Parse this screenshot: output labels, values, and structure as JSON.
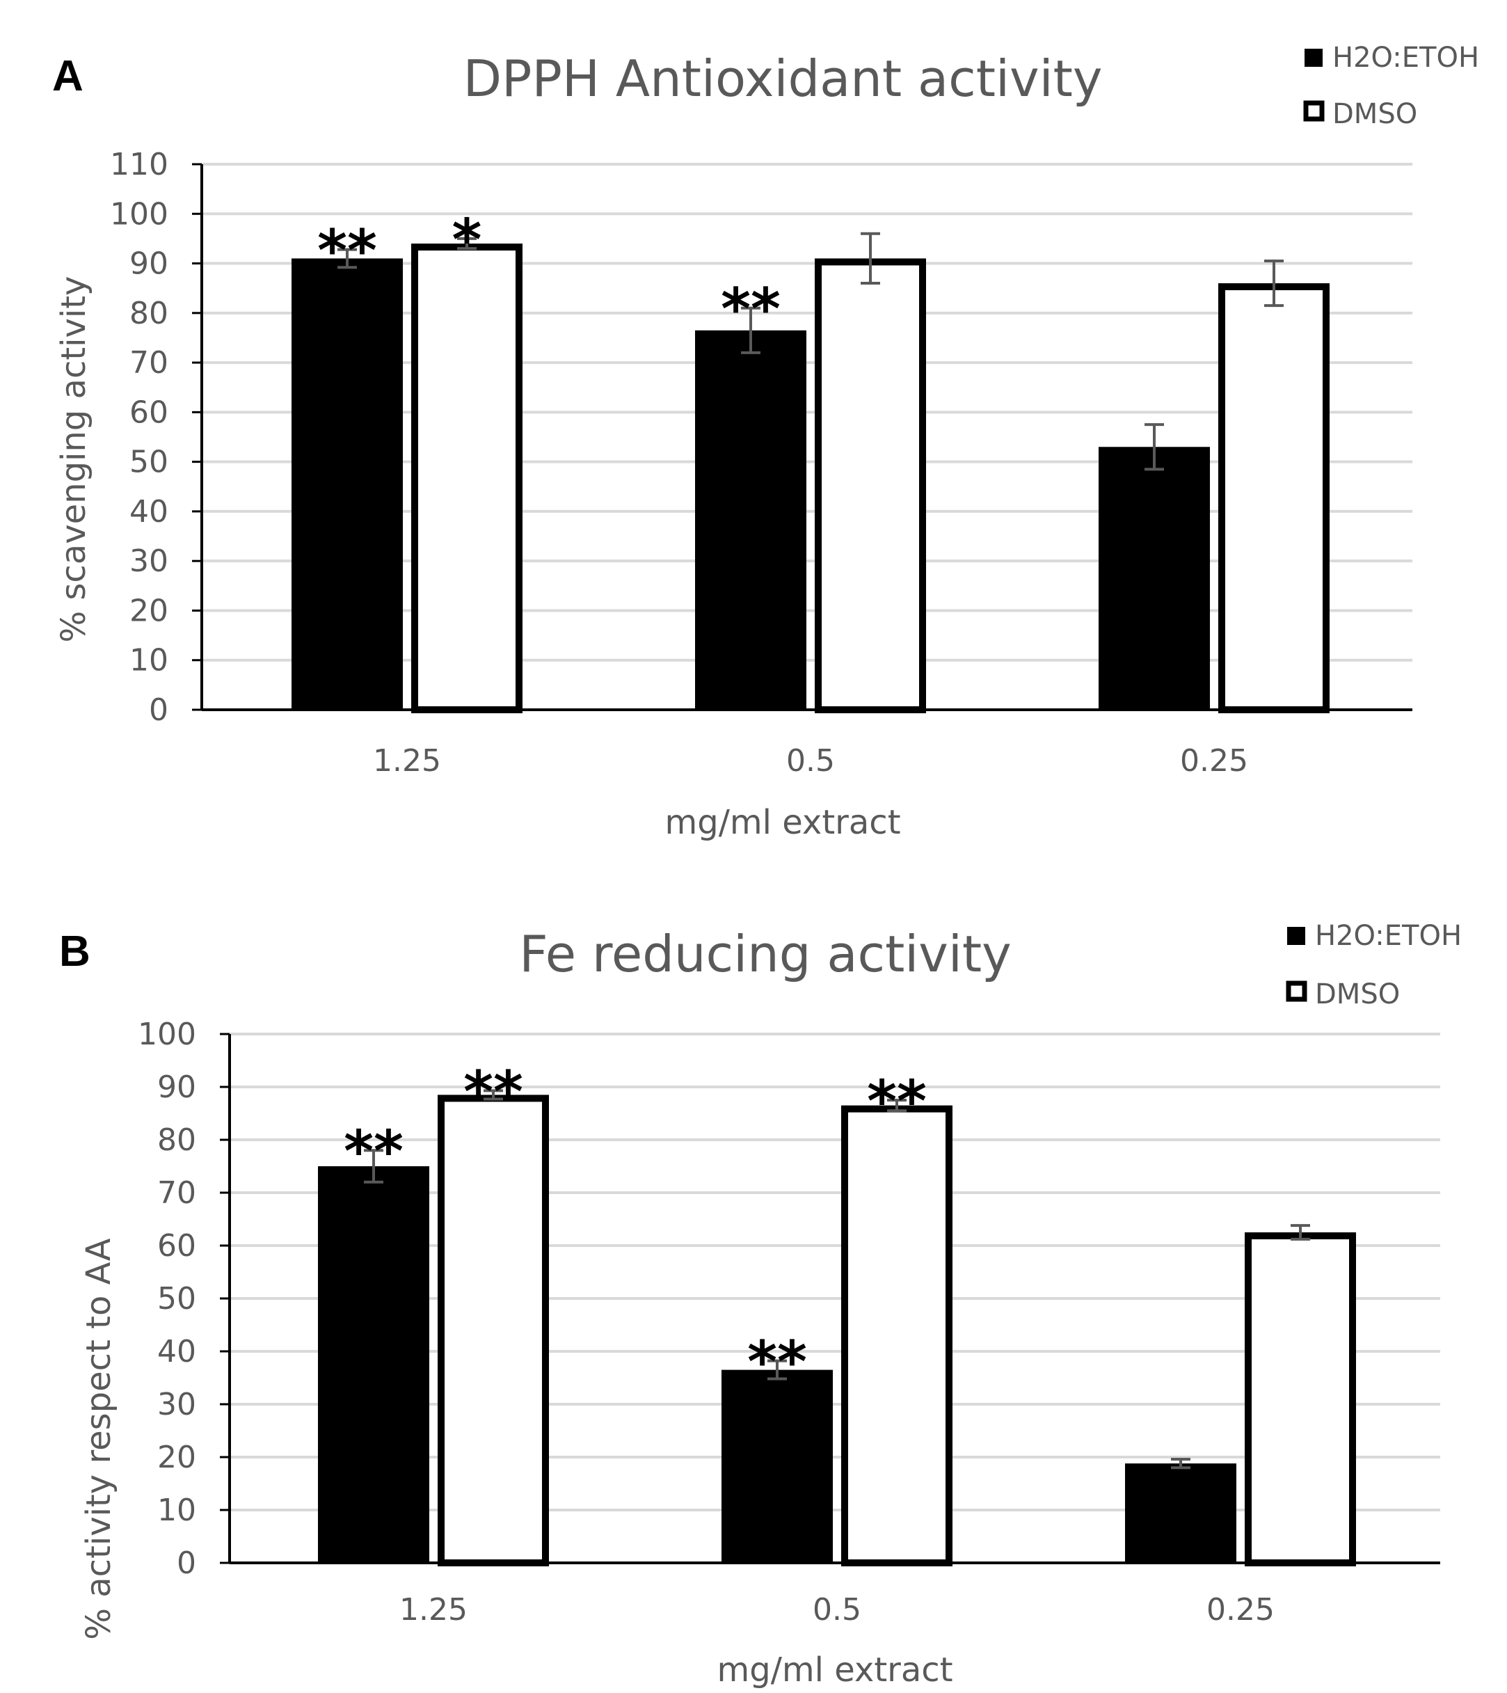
{
  "chart_data": [
    {
      "panel": "A",
      "type": "bar",
      "title": "DPPH Antioxidant activity",
      "xlabel": "mg/ml extract",
      "ylabel": "% scavenging  activity",
      "ylim": [
        0,
        110
      ],
      "ytick_step": 10,
      "grid": true,
      "legend_position": "top-right",
      "categories": [
        "1.25",
        "0.5",
        "0.25"
      ],
      "series": [
        {
          "name": "H2O:ETOH",
          "fill": "#000000",
          "values": [
            91,
            76.5,
            53
          ],
          "errors": [
            1.8,
            4.5,
            4.5
          ],
          "significance": [
            "**",
            "**",
            ""
          ]
        },
        {
          "name": "DMSO",
          "fill": "#ffffff",
          "values": [
            94,
            91,
            86
          ],
          "errors": [
            1,
            5,
            4.5
          ],
          "significance": [
            "*",
            "",
            ""
          ]
        }
      ]
    },
    {
      "panel": "B",
      "type": "bar",
      "title": "Fe reducing activity",
      "xlabel": "mg/ml extract",
      "ylabel": "%  activity respect to AA",
      "ylim": [
        0,
        100
      ],
      "ytick_step": 10,
      "grid": true,
      "legend_position": "top-right",
      "categories": [
        "1.25",
        "0.5",
        "0.25"
      ],
      "series": [
        {
          "name": "H2O:ETOH",
          "fill": "#000000",
          "values": [
            75,
            36.5,
            18.8
          ],
          "errors": [
            3,
            1.7,
            0.8
          ],
          "significance": [
            "**",
            "**",
            ""
          ]
        },
        {
          "name": "DMSO",
          "fill": "#ffffff",
          "values": [
            88.5,
            86.5,
            62.5
          ],
          "errors": [
            0.8,
            1,
            1.3
          ],
          "significance": [
            "**",
            "**",
            ""
          ]
        }
      ]
    }
  ],
  "colors": {
    "bar_outline": "#000000",
    "gridline": "#d9d9d9",
    "axis_line": "#000000",
    "error_bar": "#595959",
    "text": "#595959"
  }
}
